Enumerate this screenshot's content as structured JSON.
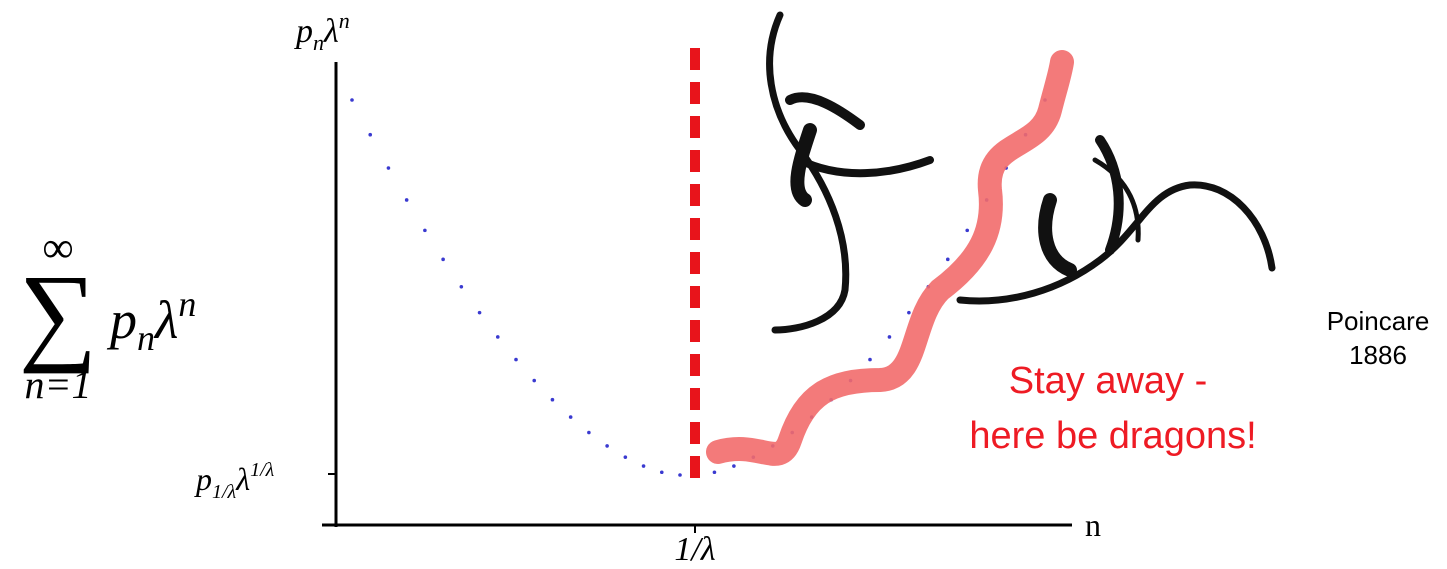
{
  "formula": {
    "symbol": "∑",
    "upper": "∞",
    "lower": "n=1",
    "body": [
      "p",
      "n",
      "λ",
      "n"
    ]
  },
  "y_axis_label": [
    "p",
    "n",
    "λ",
    "n"
  ],
  "y_tick_label": [
    "p",
    "1/λ",
    "λ",
    "1/λ"
  ],
  "x_tick_label": "1/λ",
  "x_axis_label": "n",
  "warning": [
    "Stay away -",
    "here be dragons!"
  ],
  "attribution": [
    "Poincare",
    "1886"
  ]
}
